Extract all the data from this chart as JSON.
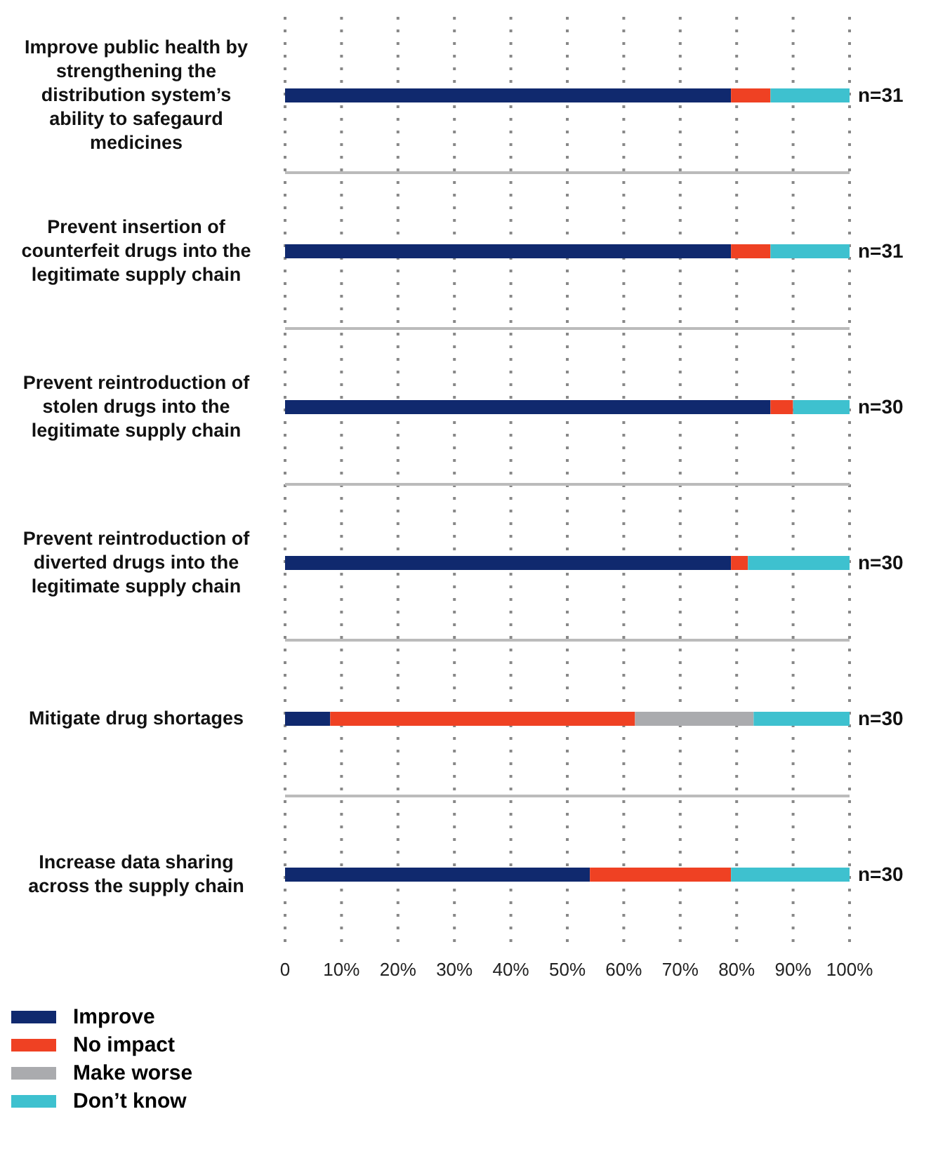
{
  "chart_data": {
    "type": "bar",
    "orientation": "horizontal",
    "stacked": true,
    "categories": [
      "Improve public health by strengthening the distribution system’s ability to safegaurd medicines",
      "Prevent insertion of counterfeit drugs into the legitimate supply chain",
      "Prevent reintroduction of stolen drugs into the legitimate supply chain",
      "Prevent reintroduction of diverted drugs into the legitimate supply chain",
      "Mitigate drug shortages",
      "Increase data sharing across the supply chain"
    ],
    "series": [
      {
        "name": "Improve",
        "color": "#10296e",
        "values": [
          79,
          79,
          86,
          79,
          8,
          54
        ]
      },
      {
        "name": "No impact",
        "color": "#ef4123",
        "values": [
          7,
          7,
          4,
          3,
          54,
          25
        ]
      },
      {
        "name": "Make worse",
        "color": "#aaabae",
        "values": [
          0,
          0,
          0,
          0,
          21,
          0
        ]
      },
      {
        "name": "Don’t know",
        "color": "#3ec1cf",
        "values": [
          14,
          14,
          10,
          18,
          17,
          21
        ]
      }
    ],
    "xlim": [
      0,
      100
    ],
    "xticks": [
      0,
      {
        "value": 10,
        "label": "10%"
      },
      {
        "value": 20,
        "label": "20%"
      },
      {
        "value": 30,
        "label": "30%"
      },
      {
        "value": 40,
        "label": "40%"
      },
      {
        "value": 50,
        "label": "50%"
      },
      {
        "value": 60,
        "label": "60%"
      },
      {
        "value": 70,
        "label": "70%"
      },
      {
        "value": 80,
        "label": "80%"
      },
      {
        "value": 90,
        "label": "90%"
      },
      {
        "value": 100,
        "label": "100%"
      }
    ],
    "annotations": [
      "n=31",
      "n=31",
      "n=30",
      "n=30",
      "n=30",
      "n=30"
    ],
    "grid": true,
    "legend": "bottom left"
  }
}
